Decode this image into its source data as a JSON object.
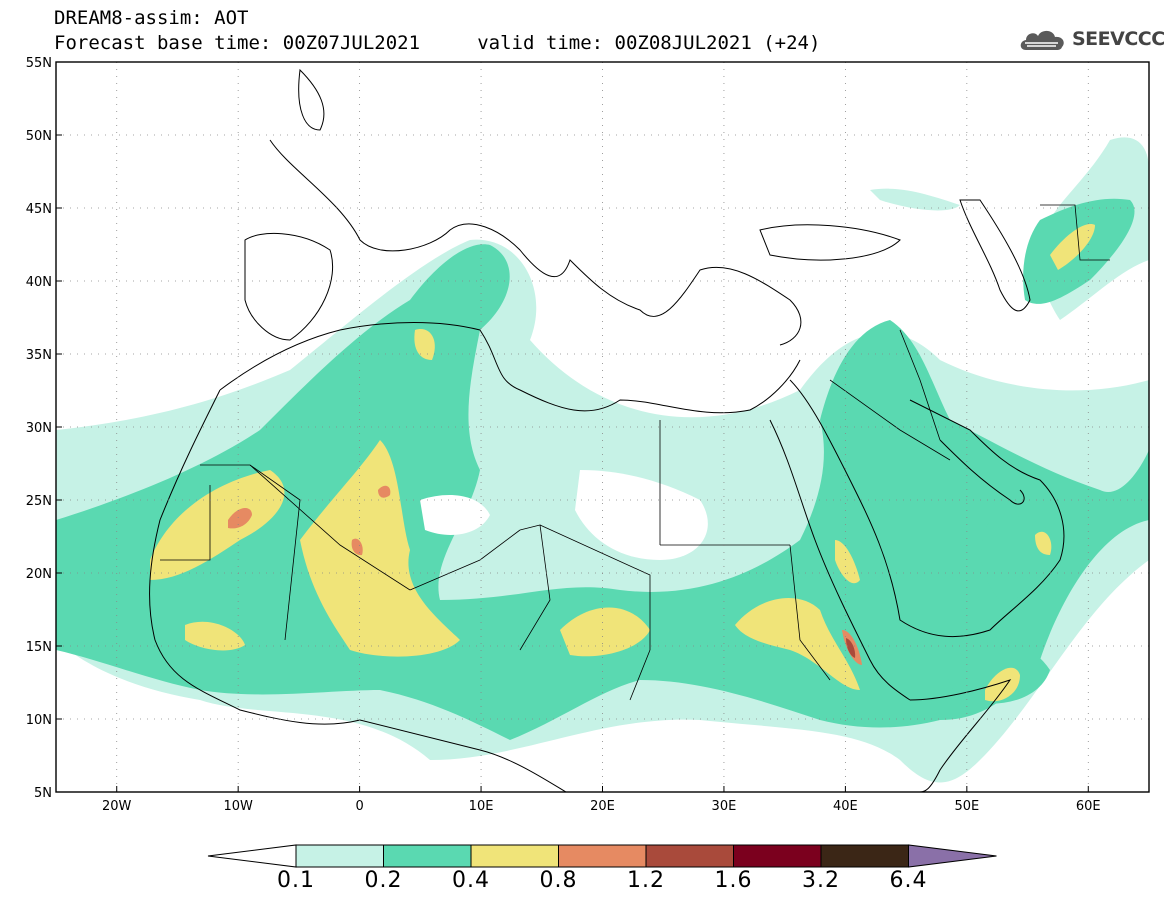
{
  "header": {
    "line1": "DREAM8-assim: AOT",
    "line2": "Forecast base time: 00Z07JUL2021     valid time: 00Z08JUL2021 (+24)"
  },
  "brand": {
    "name": "SEEVCCC",
    "icon": "cloud-logo-icon"
  },
  "map": {
    "lon_range": [
      -25,
      65
    ],
    "lat_range": [
      5,
      55
    ],
    "lon_ticks": [
      {
        "value": -20,
        "label": "20W"
      },
      {
        "value": -10,
        "label": "10W"
      },
      {
        "value": 0,
        "label": "0"
      },
      {
        "value": 10,
        "label": "10E"
      },
      {
        "value": 20,
        "label": "20E"
      },
      {
        "value": 30,
        "label": "30E"
      },
      {
        "value": 40,
        "label": "40E"
      },
      {
        "value": 50,
        "label": "50E"
      },
      {
        "value": 60,
        "label": "60E"
      }
    ],
    "lat_ticks": [
      {
        "value": 55,
        "label": "55N"
      },
      {
        "value": 50,
        "label": "50N"
      },
      {
        "value": 45,
        "label": "45N"
      },
      {
        "value": 40,
        "label": "40N"
      },
      {
        "value": 35,
        "label": "35N"
      },
      {
        "value": 30,
        "label": "30N"
      },
      {
        "value": 25,
        "label": "25N"
      },
      {
        "value": 20,
        "label": "20N"
      },
      {
        "value": 15,
        "label": "15N"
      },
      {
        "value": 10,
        "label": "10N"
      },
      {
        "value": 5,
        "label": "5N"
      }
    ],
    "grid": true
  },
  "colorbar": {
    "labels": [
      "0.1",
      "0.2",
      "0.4",
      "0.8",
      "1.2",
      "1.6",
      "3.2",
      "6.4"
    ],
    "colors": [
      "#ffffff",
      "#c6f2e6",
      "#5ad9b1",
      "#f0e479",
      "#e68a62",
      "#a94a3b",
      "#7b001e",
      "#3b2616",
      "#8a70a8"
    ]
  },
  "colors": {
    "aot_0_1": "#c6f2e6",
    "aot_0_2": "#5ad9b1",
    "aot_0_4": "#f0e479",
    "aot_0_8": "#e68a62",
    "aot_1_2": "#a94a3b"
  }
}
